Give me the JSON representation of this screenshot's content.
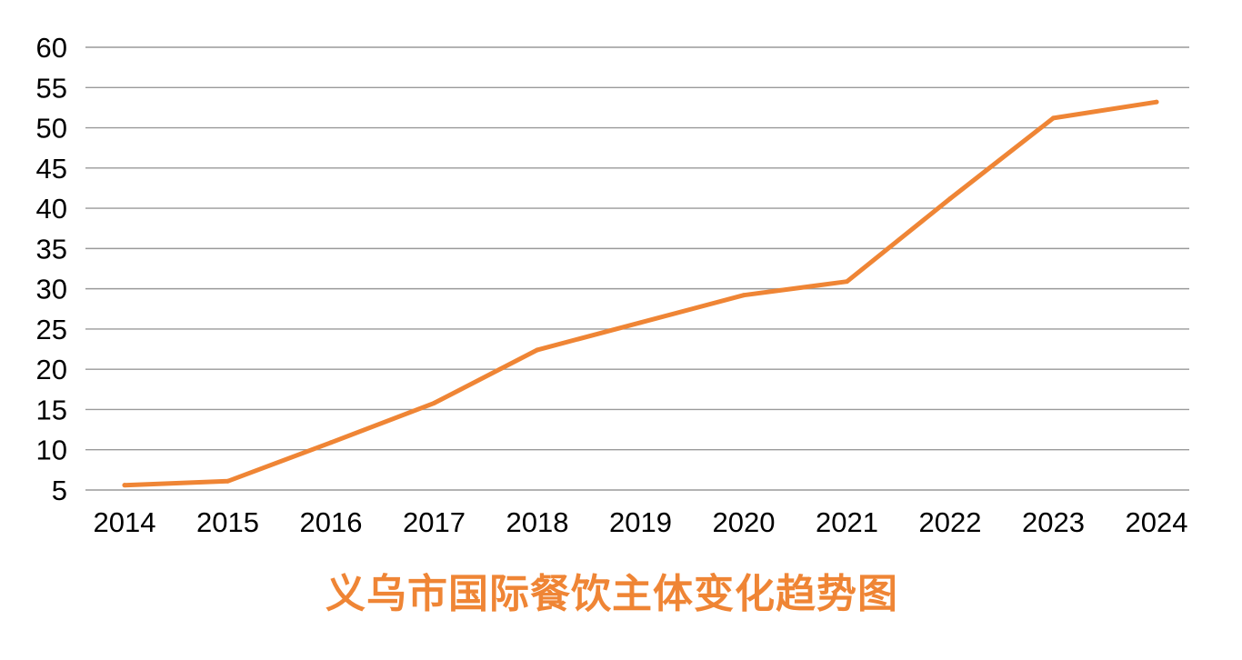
{
  "chart_data": {
    "type": "line",
    "title": "义乌市国际餐饮主体变化趋势图",
    "xlabel": "",
    "ylabel": "",
    "categories": [
      "2014",
      "2015",
      "2016",
      "2017",
      "2018",
      "2019",
      "2020",
      "2021",
      "2022",
      "2023",
      "2024"
    ],
    "series": [
      {
        "values": [
          5.6,
          6.1,
          10.9,
          15.8,
          22.4,
          25.8,
          29.2,
          30.9,
          41.2,
          51.2,
          53.2
        ]
      }
    ],
    "yticks": [
      "5",
      "10",
      "15",
      "20",
      "25",
      "30",
      "35",
      "40",
      "45",
      "50",
      "55",
      "60"
    ],
    "ylim": [
      5,
      60
    ],
    "grid": true,
    "legend": "none"
  },
  "colors": {
    "series": "#ef8535",
    "title": "#ef8535",
    "grid": "#9a9a9a",
    "text": "#000000"
  }
}
